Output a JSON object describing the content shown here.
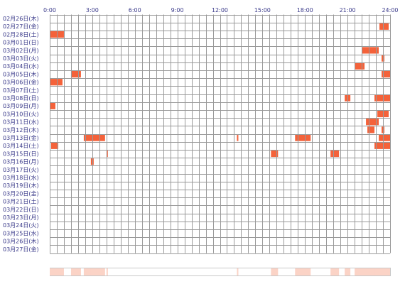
{
  "chart_data": {
    "type": "activity-timeline",
    "title": "",
    "x_range_hours": [
      0,
      24
    ],
    "x_tick_labels": [
      "0:00",
      "3:00",
      "6:00",
      "9:00",
      "12:00",
      "15:00",
      "18:00",
      "21:00",
      "24:00"
    ],
    "x_tick_hours": [
      0,
      3,
      6,
      9,
      12,
      15,
      18,
      21,
      24
    ],
    "grid": true,
    "rows": [
      {
        "label": "02月26日(木)",
        "segments": []
      },
      {
        "label": "02月27日(金)",
        "segments": [
          [
            23.25,
            23.9
          ]
        ]
      },
      {
        "label": "02月28日(土)",
        "segments": [
          [
            0.0,
            1.0
          ]
        ]
      },
      {
        "label": "03月01日(日)",
        "segments": []
      },
      {
        "label": "03月02日(月)",
        "segments": [
          [
            22.0,
            23.2
          ]
        ]
      },
      {
        "label": "03月03日(火)",
        "segments": [
          [
            23.4,
            23.6
          ]
        ]
      },
      {
        "label": "03月04日(水)",
        "segments": [
          [
            21.5,
            22.2
          ]
        ]
      },
      {
        "label": "03月05日(木)",
        "segments": [
          [
            1.5,
            2.2
          ],
          [
            23.4,
            24.0
          ]
        ]
      },
      {
        "label": "03月06日(金)",
        "segments": [
          [
            0.0,
            0.9
          ]
        ]
      },
      {
        "label": "03月07日(土)",
        "segments": []
      },
      {
        "label": "03月08日(日)",
        "segments": [
          [
            20.8,
            21.2
          ],
          [
            22.9,
            24.0
          ]
        ]
      },
      {
        "label": "03月09日(月)",
        "segments": [
          [
            0.0,
            0.4
          ]
        ]
      },
      {
        "label": "03月10日(火)",
        "segments": [
          [
            23.1,
            23.9
          ]
        ]
      },
      {
        "label": "03月11日(水)",
        "segments": [
          [
            22.3,
            23.2
          ]
        ]
      },
      {
        "label": "03月12日(木)",
        "segments": [
          [
            22.4,
            22.9
          ],
          [
            23.4,
            23.6
          ]
        ]
      },
      {
        "label": "03月13日(金)",
        "segments": [
          [
            2.4,
            3.9
          ],
          [
            13.2,
            13.3
          ],
          [
            17.3,
            18.4
          ],
          [
            23.2,
            24.0
          ]
        ]
      },
      {
        "label": "03月14日(土)",
        "segments": [
          [
            0.1,
            0.6
          ],
          [
            22.9,
            24.0
          ]
        ]
      },
      {
        "label": "03月15日(日)",
        "segments": [
          [
            4.0,
            4.1
          ],
          [
            15.6,
            16.1
          ],
          [
            19.8,
            20.4
          ]
        ]
      },
      {
        "label": "03月16日(月)",
        "segments": [
          [
            2.9,
            3.1
          ]
        ]
      },
      {
        "label": "03月17日(火)",
        "segments": []
      },
      {
        "label": "03月18日(水)",
        "segments": []
      },
      {
        "label": "03月19日(木)",
        "segments": []
      },
      {
        "label": "03月20日(金)",
        "segments": []
      },
      {
        "label": "03月21日(土)",
        "segments": []
      },
      {
        "label": "03月22日(日)",
        "segments": []
      },
      {
        "label": "03月23日(月)",
        "segments": []
      },
      {
        "label": "03月24日(火)",
        "segments": []
      },
      {
        "label": "03月25日(水)",
        "segments": []
      },
      {
        "label": "03月26日(木)",
        "segments": []
      },
      {
        "label": "03月27日(金)",
        "segments": []
      }
    ],
    "colors": {
      "activity": "#f4623a",
      "activity_light": "#fbd3c6",
      "grid": "#999999",
      "label": "#3a3a8a",
      "summary_border": "#c8c8c8"
    }
  }
}
